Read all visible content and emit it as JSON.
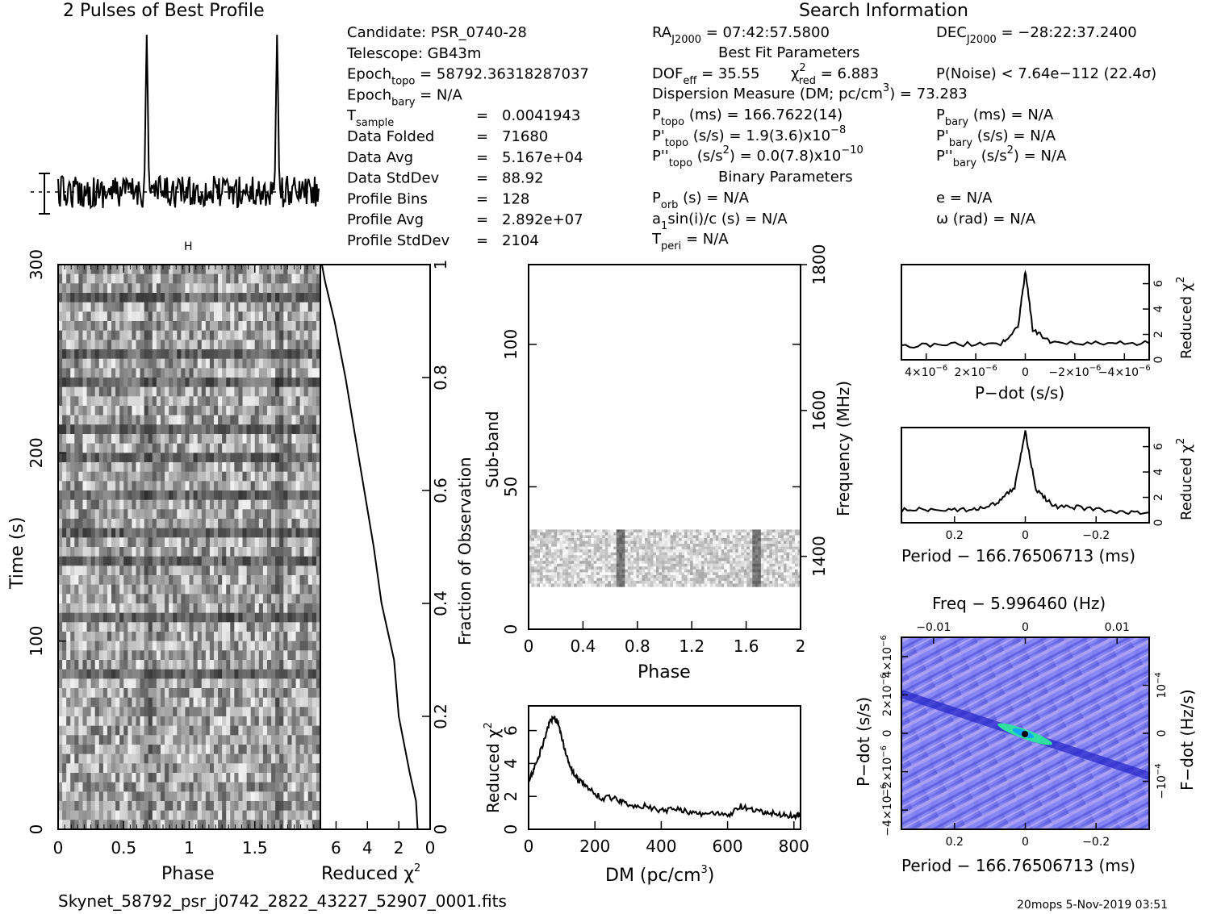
{
  "header": {
    "profile_title": "2 Pulses of Best Profile",
    "search_title": "Search Information",
    "best_fit_title": "Best Fit Parameters",
    "binary_title": "Binary Parameters",
    "filename": "Skynet_58792_psr_j0742_2822_43227_52907_0001.fits",
    "footer_right": "20mops   5-Nov-2019 03:51"
  },
  "info_left": [
    {
      "label": "Candidate:  PSR_0740-28",
      "value": ""
    },
    {
      "label": "Telescope:  GB43m",
      "value": ""
    },
    {
      "label": "Epoch",
      "sub": "topo",
      "value": " = 58792.36318287037"
    },
    {
      "label": "Epoch",
      "sub": "bary",
      "value": " = N/A"
    },
    {
      "label": "T",
      "sub": "sample",
      "eq": "=",
      "value": "0.0041943"
    },
    {
      "label": "Data Folded",
      "eq": "=",
      "value": "71680"
    },
    {
      "label": "Data Avg",
      "eq": "=",
      "value": "5.167e+04"
    },
    {
      "label": "Data StdDev",
      "eq": "=",
      "value": "88.92"
    },
    {
      "label": "Profile Bins",
      "eq": "=",
      "value": "128"
    },
    {
      "label": "Profile Avg",
      "eq": "=",
      "value": "2.892e+07"
    },
    {
      "label": "Profile StdDev",
      "eq": "=",
      "value": "2104"
    }
  ],
  "info_right": {
    "ra": {
      "label": "RA",
      "sub": "J2000",
      "value": " = 07:42:57.5800"
    },
    "dec": {
      "label": "DEC",
      "sub": "J2000",
      "value": " = −28:22:37.2400"
    },
    "dof": {
      "label": "DOF",
      "sub": "eff",
      "value": " = 35.55"
    },
    "chi2": {
      "label": "χ",
      "sup": "2",
      "sub": "red",
      "value": " = 6.883"
    },
    "pnoise": "P(Noise) < 7.64e−112  (22.4σ)",
    "dm": "Dispersion Measure (DM; pc/cm",
    "dm_sup": "3",
    "dm_value": ") = 73.283",
    "ptopo": {
      "label": "P",
      "sub": "topo",
      "value": " (ms) =  166.7622(14)"
    },
    "pbary": {
      "label": "P",
      "sub": "bary",
      "value": " (ms) = N/A"
    },
    "pdtopo": {
      "label": "P'",
      "sub": "topo",
      "value": " (s/s) =  1.9(3.6)x10",
      "exp": "−8"
    },
    "pdbary": {
      "label": "P'",
      "sub": "bary",
      "value": " (s/s) = N/A"
    },
    "pddtopo": {
      "label": "P''",
      "sub": "topo",
      "value": " (s/s",
      "sup": "2",
      "value2": ") = 0.0(7.8)x10",
      "exp": "−10"
    },
    "pddbary": {
      "label": "P''",
      "sub": "bary",
      "value": " (s/s",
      "sup": "2",
      "value2": ") = N/A"
    },
    "porb": {
      "label": "P",
      "sub": "orb",
      "value": " (s) = N/A"
    },
    "ecc": "e = N/A",
    "asini": {
      "label": "a",
      "sub": "1",
      "value": "sin(i)/c (s) = N/A"
    },
    "omega": "ω (rad) = N/A",
    "tperi": {
      "label": "T",
      "sub": "peri",
      "value": " = N/A"
    }
  },
  "colors": {
    "line": "#000000",
    "grey_mid": "#8c8c8c",
    "pdot_map_bg": "#6f6fe8",
    "pdot_map_peak": "#30e0a0"
  },
  "chart_data": [
    {
      "id": "profile",
      "type": "line",
      "title": "2 Pulses of Best Profile",
      "peaks_phase": [
        0.68,
        1.68
      ],
      "note": "two narrow pulses over noisy baseline"
    },
    {
      "id": "time_phase",
      "type": "heatmap",
      "xlabel": "Phase",
      "ylabel": "Time (s)",
      "xlim": [
        0,
        2
      ],
      "ylim": [
        0,
        300
      ],
      "xticks": [
        "0",
        "0.5",
        "1",
        "1.5"
      ],
      "yticks": [
        "0",
        "100",
        "200",
        "300"
      ]
    },
    {
      "id": "reduced_chi2_time",
      "type": "line",
      "xlabel": "Reduced χ",
      "xlabel_sup": "2",
      "ylabel": "Fraction of Observation",
      "xlim": [
        0,
        7
      ],
      "ylim": [
        0,
        1
      ],
      "xticks": [
        "6",
        "4",
        "2",
        "0"
      ],
      "yticks": [
        "0",
        "0.2",
        "0.4",
        "0.6",
        "0.8",
        "1"
      ],
      "x": [
        0.8,
        0.9,
        1.3,
        2.0,
        2.3,
        3.1,
        3.6,
        4.2,
        4.8,
        5.4,
        6.1,
        6.7,
        6.9
      ],
      "y": [
        0.0,
        0.05,
        0.1,
        0.2,
        0.3,
        0.4,
        0.5,
        0.6,
        0.7,
        0.8,
        0.9,
        0.97,
        1.0
      ]
    },
    {
      "id": "subband",
      "type": "heatmap",
      "xlabel": "Phase",
      "ylabel": "Sub-band",
      "y2label": "Frequency (MHz)",
      "xlim": [
        0,
        2
      ],
      "ylim": [
        0,
        128
      ],
      "xticks": [
        "0",
        "0.4",
        "0.8",
        "1.2",
        "1.6",
        "2"
      ],
      "yticks": [
        "0",
        "50",
        "100"
      ],
      "y2ticks": [
        "1400",
        "1600",
        "1800"
      ],
      "band_y": [
        15,
        35
      ],
      "pulse_phase": [
        0.68,
        1.68
      ]
    },
    {
      "id": "dm_curve",
      "type": "line",
      "xlabel": "DM (pc/cm",
      "xlabel_sup": "3",
      "xlabel_end": ")",
      "ylabel": "Reduced χ",
      "ylabel_sup": "2",
      "xlim": [
        0,
        820
      ],
      "ylim": [
        0,
        7.5
      ],
      "xticks": [
        "0",
        "200",
        "400",
        "600",
        "800"
      ],
      "yticks": [
        "0",
        "2",
        "4",
        "6"
      ],
      "x": [
        0,
        20,
        40,
        60,
        75,
        90,
        110,
        130,
        150,
        180,
        220,
        260,
        300,
        350,
        400,
        450,
        500,
        550,
        600,
        640,
        680,
        720,
        760,
        800,
        820
      ],
      "y": [
        3.0,
        3.8,
        5.0,
        6.3,
        6.9,
        6.4,
        4.8,
        3.6,
        3.0,
        2.5,
        1.9,
        1.9,
        1.5,
        1.4,
        1.1,
        1.3,
        0.9,
        1.0,
        0.8,
        1.4,
        1.1,
        1.0,
        0.9,
        0.8,
        0.9
      ]
    },
    {
      "id": "pdot_curve",
      "type": "line",
      "xlabel": "P−dot (s/s)",
      "ylabel": "Reduced χ",
      "ylabel_sup": "2",
      "xlim": [
        5e-06,
        -5e-06
      ],
      "ylim": [
        0,
        7.5
      ],
      "xticks": [
        "4×10",
        "2×10",
        "0",
        "−2×10",
        "−4×10"
      ],
      "xticks_exp": "−6",
      "yticks": [
        "0",
        "2",
        "4",
        "6"
      ],
      "x": [
        5e-06,
        3e-06,
        1e-06,
        3e-07,
        0,
        -3e-07,
        -1e-06,
        -3e-06,
        -5e-06
      ],
      "y": [
        1.1,
        1.2,
        1.3,
        2.5,
        7.0,
        2.4,
        1.4,
        1.3,
        1.3
      ]
    },
    {
      "id": "period_curve",
      "type": "line",
      "xlabel": "Period − 166.76506713 (ms)",
      "ylabel": "Reduced χ",
      "ylabel_sup": "2",
      "xlim": [
        0.35,
        -0.35
      ],
      "ylim": [
        0,
        7.5
      ],
      "xticks": [
        "0.2",
        "0",
        "−0.2"
      ],
      "yticks": [
        "0",
        "2",
        "4",
        "6"
      ],
      "x": [
        0.35,
        0.25,
        0.15,
        0.08,
        0.03,
        0.0,
        -0.03,
        -0.08,
        -0.15,
        -0.25,
        -0.35
      ],
      "y": [
        1.0,
        1.1,
        1.0,
        1.5,
        2.8,
        7.2,
        2.6,
        1.3,
        1.2,
        0.9,
        0.8
      ]
    },
    {
      "id": "pdot_map",
      "type": "heatmap",
      "title": "Freq − 5.996460 (Hz)",
      "xlabel": "Period − 166.76506713 (ms)",
      "ylabel": "P−dot (s/s)",
      "y2label": "F−dot (Hz/s)",
      "xticks": [
        "0.2",
        "0",
        "−0.2"
      ],
      "topticks": [
        "−0.01",
        "0",
        "0.01"
      ],
      "yticks": [
        "4×10",
        "2×10",
        "0",
        "−2×10",
        "−4×10"
      ],
      "y2ticks": [
        "10",
        "0",
        "−10"
      ],
      "y2ticks_exp": "−4"
    }
  ]
}
